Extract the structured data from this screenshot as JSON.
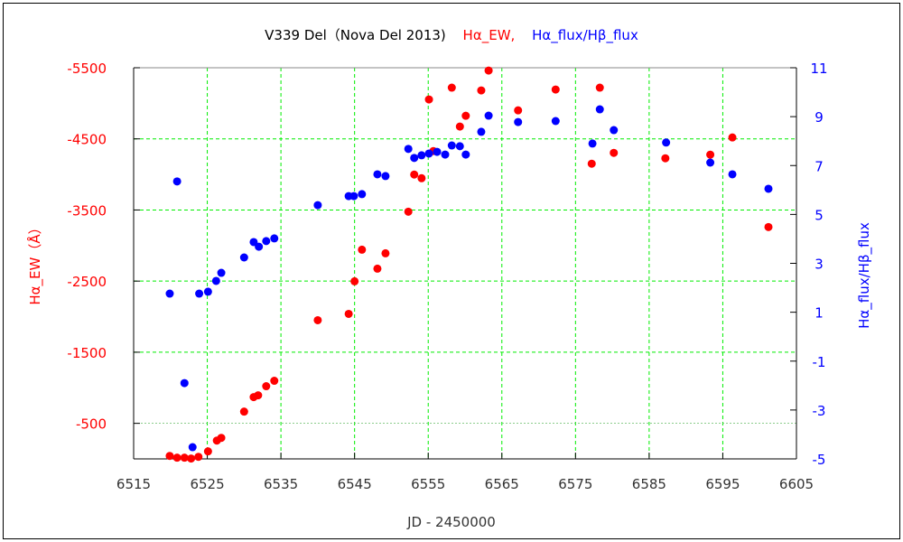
{
  "chart_data": {
    "type": "scatter",
    "title_parts": [
      {
        "text": "V339 Del（Nova Del 2013)",
        "color": "#000000"
      },
      {
        "text": "Hα_EW,",
        "color": "#ff0000"
      },
      {
        "text": "Hα_flux/Hβ_flux",
        "color": "#0000ff"
      }
    ],
    "xlabel": "JD - 2450000",
    "ylabel_left": "Hα_EW（Å）",
    "ylabel_right": "Hα_flux/Hβ_flux",
    "xlim": [
      6515,
      6605
    ],
    "ylim_left": [
      0,
      -5500
    ],
    "ylim_right": [
      -5,
      11
    ],
    "x_ticks": [
      "6515",
      "6525",
      "6535",
      "6545",
      "6555",
      "6565",
      "6575",
      "6585",
      "6595",
      "6605"
    ],
    "y_left_ticks": [
      "-5500",
      "-4500",
      "-3500",
      "-2500",
      "-1500",
      "-500"
    ],
    "y_right_ticks": [
      "11",
      "9",
      "7",
      "5",
      "3",
      "1",
      "-1",
      "-3",
      "-5"
    ],
    "grid": true,
    "colors": {
      "ew": "#ff0000",
      "flux": "#0000ff",
      "grid": "#00ee00"
    },
    "series": [
      {
        "name": "Hα_EW",
        "axis": "left",
        "x": [
          6519.9,
          6520.9,
          6521.9,
          6522.8,
          6523.8,
          6525.1,
          6526.3,
          6526.9,
          6530.0,
          6531.3,
          6531.9,
          6533.0,
          6534.1,
          6540.0,
          6544.2,
          6545.0,
          6546.0,
          6548.1,
          6549.2,
          6552.3,
          6553.1,
          6554.1,
          6555.1,
          6555.7,
          6558.2,
          6559.3,
          6560.1,
          6562.2,
          6563.2,
          6567.2,
          6572.3,
          6577.2,
          6578.3,
          6580.2,
          6587.2,
          6593.3,
          6596.3,
          6601.2
        ],
        "y": [
          -42,
          -17,
          -17,
          -5,
          -29,
          -106,
          -258,
          -296,
          -665,
          -869,
          -894,
          -1022,
          -1098,
          -1950,
          -2039,
          -2497,
          -2942,
          -2675,
          -2891,
          -3476,
          -3998,
          -3947,
          -5054,
          -4329,
          -5220,
          -4673,
          -4825,
          -5181,
          -5461,
          -4901,
          -5194,
          -4151,
          -5220,
          -4303,
          -4227,
          -4278,
          -4520,
          -3260
        ]
      },
      {
        "name": "Hα_flux/Hβ_flux",
        "axis": "right",
        "x": [
          6519.9,
          6520.9,
          6521.9,
          6523.0,
          6523.9,
          6525.1,
          6526.2,
          6526.9,
          6530.0,
          6531.3,
          6532.0,
          6533.0,
          6534.1,
          6540.0,
          6544.2,
          6544.9,
          6546.0,
          6548.1,
          6549.2,
          6552.3,
          6553.1,
          6554.1,
          6555.1,
          6556.2,
          6557.3,
          6558.2,
          6559.3,
          6560.1,
          6562.2,
          6563.2,
          6567.2,
          6572.3,
          6577.3,
          6578.3,
          6580.2,
          6587.3,
          6593.3,
          6596.3,
          6601.2
        ],
        "y": [
          1.76,
          6.35,
          -1.9,
          -4.52,
          1.76,
          1.84,
          2.28,
          2.61,
          3.24,
          3.87,
          3.68,
          3.91,
          4.02,
          5.38,
          5.75,
          5.75,
          5.83,
          6.64,
          6.57,
          7.68,
          7.31,
          7.42,
          7.49,
          7.56,
          7.45,
          7.82,
          7.79,
          7.45,
          8.38,
          9.04,
          8.78,
          8.82,
          7.9,
          9.3,
          8.45,
          7.94,
          7.12,
          6.64,
          6.05
        ]
      }
    ]
  }
}
